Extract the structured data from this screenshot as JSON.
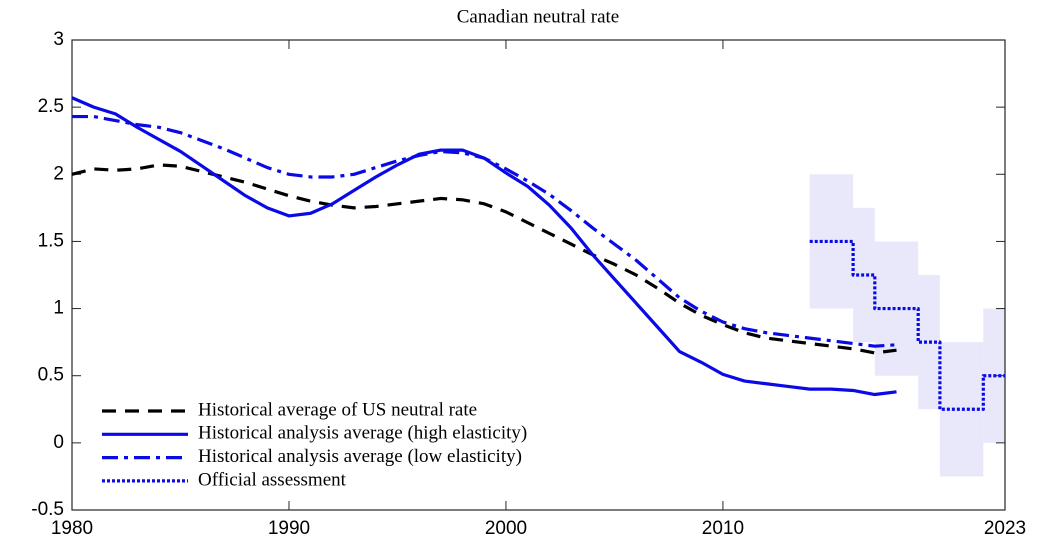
{
  "chart_data": {
    "type": "line",
    "title": "Canadian neutral rate",
    "xlim": [
      1980,
      2023
    ],
    "xticks": [
      1980,
      1990,
      2000,
      2010,
      2023
    ],
    "ylim": [
      -0.5,
      3
    ],
    "yticks": [
      -0.5,
      0,
      0.5,
      1,
      1.5,
      2,
      2.5,
      3
    ],
    "legend": "lower left",
    "series": [
      {
        "name": "Historical average of US neutral rate",
        "color": "#000000",
        "dash": "dashed",
        "x": [
          1980,
          1981,
          1982,
          1983,
          1984,
          1985,
          1986,
          1987,
          1988,
          1989,
          1990,
          1991,
          1992,
          1993,
          1994,
          1995,
          1996,
          1997,
          1998,
          1999,
          2000,
          2001,
          2002,
          2003,
          2004,
          2005,
          2006,
          2007,
          2008,
          2009,
          2010,
          2011,
          2012,
          2013,
          2014,
          2015,
          2016,
          2017,
          2018
        ],
        "values": [
          2.0,
          2.04,
          2.03,
          2.04,
          2.07,
          2.06,
          2.02,
          1.98,
          1.94,
          1.89,
          1.84,
          1.8,
          1.77,
          1.75,
          1.76,
          1.78,
          1.8,
          1.82,
          1.81,
          1.78,
          1.72,
          1.64,
          1.56,
          1.48,
          1.4,
          1.33,
          1.25,
          1.15,
          1.04,
          0.95,
          0.88,
          0.82,
          0.78,
          0.76,
          0.74,
          0.72,
          0.7,
          0.67,
          0.69
        ]
      },
      {
        "name": "Historical analysis average (high elasticity)",
        "color": "#0a0ae6",
        "dash": "solid",
        "x": [
          1980,
          1981,
          1982,
          1983,
          1984,
          1985,
          1986,
          1987,
          1988,
          1989,
          1990,
          1991,
          1992,
          1993,
          1994,
          1995,
          1996,
          1997,
          1998,
          1999,
          2000,
          2001,
          2002,
          2003,
          2004,
          2005,
          2006,
          2007,
          2008,
          2009,
          2010,
          2011,
          2012,
          2013,
          2014,
          2015,
          2016,
          2017,
          2018
        ],
        "values": [
          2.57,
          2.5,
          2.45,
          2.35,
          2.26,
          2.17,
          2.06,
          1.95,
          1.84,
          1.75,
          1.69,
          1.71,
          1.78,
          1.88,
          1.98,
          2.07,
          2.15,
          2.18,
          2.18,
          2.12,
          2.01,
          1.91,
          1.77,
          1.6,
          1.4,
          1.22,
          1.04,
          0.86,
          0.68,
          0.6,
          0.51,
          0.46,
          0.44,
          0.42,
          0.4,
          0.4,
          0.39,
          0.36,
          0.38
        ]
      },
      {
        "name": "Historical analysis average (low elasticity)",
        "color": "#0a0ae6",
        "dash": "dashdot",
        "x": [
          1980,
          1981,
          1982,
          1983,
          1984,
          1985,
          1986,
          1987,
          1988,
          1989,
          1990,
          1991,
          1992,
          1993,
          1994,
          1995,
          1996,
          1997,
          1998,
          1999,
          2000,
          2001,
          2002,
          2003,
          2004,
          2005,
          2006,
          2007,
          2008,
          2009,
          2010,
          2011,
          2012,
          2013,
          2014,
          2015,
          2016,
          2017,
          2018
        ],
        "values": [
          2.43,
          2.43,
          2.4,
          2.37,
          2.35,
          2.31,
          2.25,
          2.19,
          2.12,
          2.05,
          2.0,
          1.98,
          1.98,
          2.0,
          2.05,
          2.1,
          2.14,
          2.17,
          2.16,
          2.12,
          2.04,
          1.95,
          1.85,
          1.73,
          1.6,
          1.48,
          1.36,
          1.22,
          1.08,
          0.98,
          0.9,
          0.85,
          0.82,
          0.8,
          0.78,
          0.76,
          0.74,
          0.72,
          0.73
        ]
      },
      {
        "name": "Official assessment",
        "color": "#0a0ae6",
        "dash": "dotted",
        "step": true,
        "band_color": "#e8e8fa",
        "x": [
          2014,
          2016,
          2017,
          2019,
          2020,
          2022
        ],
        "values": [
          1.5,
          1.25,
          1.0,
          0.75,
          0.25,
          0.5
        ],
        "low": [
          1.0,
          0.75,
          0.5,
          0.25,
          -0.25,
          0.0
        ],
        "high": [
          2.0,
          1.75,
          1.5,
          1.25,
          0.75,
          1.0
        ]
      }
    ]
  }
}
